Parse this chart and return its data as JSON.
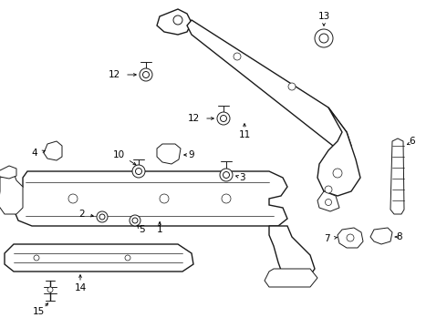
{
  "bg_color": "#ffffff",
  "line_color": "#1a1a1a",
  "fig_width": 4.9,
  "fig_height": 3.6,
  "dpi": 100,
  "lw_main": 1.0,
  "lw_med": 0.7,
  "lw_thin": 0.5,
  "fontsize": 7.5
}
